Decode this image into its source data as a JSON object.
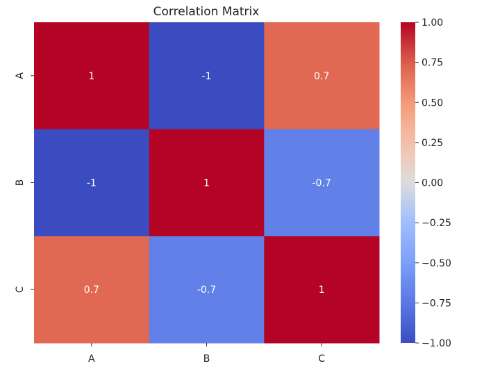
{
  "chart_data": {
    "type": "heatmap",
    "title": "Correlation Matrix",
    "x_categories": [
      "A",
      "B",
      "C"
    ],
    "y_categories": [
      "A",
      "B",
      "C"
    ],
    "values": [
      [
        1,
        -1,
        0.7
      ],
      [
        -1,
        1,
        -0.7
      ],
      [
        0.7,
        -0.7,
        1
      ]
    ],
    "annotations": [
      [
        "1",
        "-1",
        "0.7"
      ],
      [
        "-1",
        "1",
        "-0.7"
      ],
      [
        "0.7",
        "-0.7",
        "1"
      ]
    ],
    "colormap": "coolwarm",
    "vmin": -1,
    "vmax": 1,
    "colorbar_ticks": [
      1.0,
      0.75,
      0.5,
      0.25,
      0.0,
      -0.25,
      -0.5,
      -0.75,
      -1.0
    ],
    "colorbar_tick_labels": [
      "1.00",
      "0.75",
      "0.50",
      "0.25",
      "0.00",
      "−0.25",
      "−0.50",
      "−0.75",
      "−1.00"
    ],
    "annotation_color": "#ffffff",
    "grid": false
  }
}
